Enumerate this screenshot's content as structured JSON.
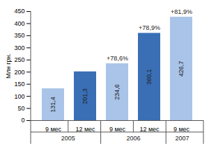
{
  "chart_data": {
    "type": "bar",
    "y_label": "Млн грн.",
    "categories": [
      "9 мес",
      "12 мес",
      "9 мес",
      "12 мес",
      "9 мес"
    ],
    "groups": [
      "2005",
      "2005",
      "2006",
      "2006",
      "2007"
    ],
    "values": [
      131.4,
      201.3,
      234.6,
      360.1,
      426.7
    ],
    "value_labels": [
      "131,4",
      "201,3",
      "234,6",
      "360,1",
      "426,7"
    ],
    "annotations": [
      null,
      null,
      "+78,6%",
      "+78,9%",
      "+81,9%"
    ],
    "colors": [
      "#a9c4e8",
      "#3a6fb5",
      "#a9c4e8",
      "#3a6fb5",
      "#a9c4e8"
    ],
    "ylim": [
      0,
      450
    ],
    "yticks": [
      0,
      50,
      100,
      150,
      200,
      250,
      300,
      350,
      400,
      450
    ],
    "data_labels": true,
    "grid": false
  }
}
